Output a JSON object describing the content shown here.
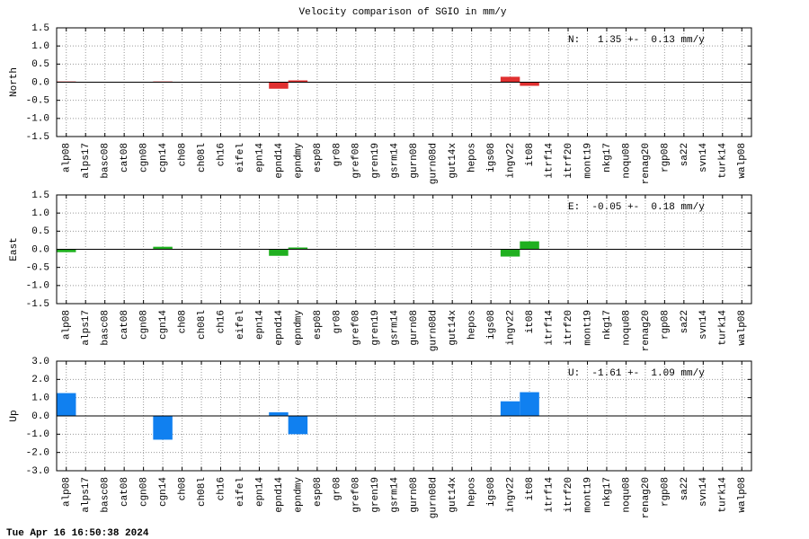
{
  "title": "Velocity comparison of SGIO in mm/y",
  "footer": "Tue Apr 16 16:50:38 2024",
  "chart_data": [
    {
      "type": "bar",
      "ylabel": "North",
      "annotation": "N:   1.35 +-  0.13 mm/y",
      "color": "#e03030",
      "grid": true,
      "categories": [
        "alp08",
        "alps17",
        "basc08",
        "cat08",
        "cgn08",
        "cgn14",
        "ch08",
        "ch08l",
        "ch16",
        "eifel",
        "epn14",
        "epnd14",
        "epndmy",
        "esp08",
        "gr08",
        "gref08",
        "gren19",
        "gsrm14",
        "gurn08",
        "gurn08d",
        "gut14x",
        "hepos",
        "igs08",
        "ingv22",
        "it08",
        "itrf14",
        "itrf20",
        "mont19",
        "nkg17",
        "noqu08",
        "renag20",
        "rgp08",
        "sa22",
        "svn14",
        "turk14",
        "walp08"
      ],
      "values": [
        0.02,
        null,
        null,
        null,
        null,
        0.02,
        null,
        null,
        null,
        null,
        null,
        -0.18,
        0.05,
        null,
        null,
        null,
        null,
        null,
        null,
        null,
        null,
        null,
        null,
        0.15,
        -0.1,
        null,
        null,
        null,
        null,
        null,
        null,
        null,
        null,
        null,
        null,
        null
      ],
      "ylim": [
        -1.5,
        1.5
      ],
      "yticks": [
        -1.5,
        {
          "value": -1,
          "label": "-1.0"
        },
        -0.5,
        {
          "value": 0,
          "label": "0.0"
        },
        0.5,
        {
          "value": 1,
          "label": "1.0"
        },
        1.5
      ]
    },
    {
      "type": "bar",
      "ylabel": "East",
      "annotation": "E:  -0.05 +-  0.18 mm/y",
      "color": "#20b020",
      "grid": true,
      "categories": [
        "alp08",
        "alps17",
        "basc08",
        "cat08",
        "cgn08",
        "cgn14",
        "ch08",
        "ch08l",
        "ch16",
        "eifel",
        "epn14",
        "epnd14",
        "epndmy",
        "esp08",
        "gr08",
        "gref08",
        "gren19",
        "gsrm14",
        "gurn08",
        "gurn08d",
        "gut14x",
        "hepos",
        "igs08",
        "ingv22",
        "it08",
        "itrf14",
        "itrf20",
        "mont19",
        "nkg17",
        "noqu08",
        "renag20",
        "rgp08",
        "sa22",
        "svn14",
        "turk14",
        "walp08"
      ],
      "values": [
        -0.08,
        null,
        null,
        null,
        null,
        0.07,
        null,
        null,
        null,
        null,
        null,
        -0.18,
        0.05,
        null,
        null,
        null,
        null,
        null,
        null,
        null,
        null,
        null,
        null,
        -0.2,
        0.22,
        null,
        null,
        null,
        null,
        null,
        null,
        null,
        null,
        null,
        null,
        null
      ],
      "ylim": [
        -1.5,
        1.5
      ],
      "yticks": [
        -1.5,
        {
          "value": -1,
          "label": "-1.0"
        },
        -0.5,
        {
          "value": 0,
          "label": "0.0"
        },
        0.5,
        {
          "value": 1,
          "label": "1.0"
        },
        1.5
      ]
    },
    {
      "type": "bar",
      "ylabel": "Up",
      "annotation": "U:  -1.61 +-  1.09 mm/y",
      "color": "#1080f0",
      "grid": true,
      "categories": [
        "alp08",
        "alps17",
        "basc08",
        "cat08",
        "cgn08",
        "cgn14",
        "ch08",
        "ch08l",
        "ch16",
        "eifel",
        "epn14",
        "epnd14",
        "epndmy",
        "esp08",
        "gr08",
        "gref08",
        "gren19",
        "gsrm14",
        "gurn08",
        "gurn08d",
        "gut14x",
        "hepos",
        "igs08",
        "ingv22",
        "it08",
        "itrf14",
        "itrf20",
        "mont19",
        "nkg17",
        "noqu08",
        "renag20",
        "rgp08",
        "sa22",
        "svn14",
        "turk14",
        "walp08"
      ],
      "values": [
        1.25,
        null,
        null,
        null,
        null,
        -1.3,
        null,
        null,
        null,
        null,
        null,
        0.2,
        -1.0,
        null,
        null,
        null,
        null,
        null,
        null,
        null,
        null,
        null,
        null,
        0.8,
        1.3,
        null,
        null,
        null,
        null,
        null,
        null,
        null,
        null,
        null,
        null,
        null
      ],
      "ylim": [
        -3,
        3
      ],
      "yticks": [
        {
          "value": -3,
          "label": "-3.0"
        },
        {
          "value": -2,
          "label": "-2.0"
        },
        {
          "value": -1,
          "label": "-1.0"
        },
        {
          "value": 0,
          "label": "0.0"
        },
        {
          "value": 1,
          "label": "1.0"
        },
        {
          "value": 2,
          "label": "2.0"
        },
        {
          "value": 3,
          "label": "3.0"
        }
      ]
    }
  ]
}
